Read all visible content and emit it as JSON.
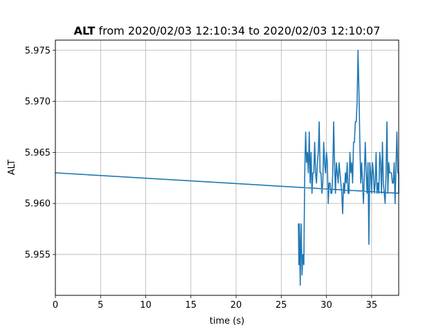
{
  "chart_data": {
    "type": "line",
    "title_bold": "ALT",
    "title_rest": " from 2020/02/03 12:10:34 to 2020/02/03 12:10:07",
    "xlabel": "time (s)",
    "ylabel": "ALT",
    "xlim": [
      0,
      38
    ],
    "ylim": [
      5.951,
      5.976
    ],
    "xticks": [
      0,
      5,
      10,
      15,
      20,
      25,
      30,
      35
    ],
    "xtick_labels": [
      "0",
      "5",
      "10",
      "15",
      "20",
      "25",
      "30",
      "35"
    ],
    "yticks": [
      5.955,
      5.96,
      5.965,
      5.97,
      5.975
    ],
    "ytick_labels": [
      "5.955",
      "5.960",
      "5.965",
      "5.970",
      "5.975"
    ],
    "grid": true,
    "line_color": "#1f77b4",
    "series": [
      {
        "x": [
          0,
          38,
          38,
          37.9,
          37.8,
          37.6,
          37.5,
          37.4,
          37.3,
          37.2,
          37.0,
          36.9,
          36.8,
          36.7,
          36.6,
          36.5,
          36.3,
          36.2,
          36.1,
          36.0,
          35.9,
          35.8,
          35.7,
          35.6,
          35.5,
          35.4,
          35.3,
          35.2,
          35.1,
          35.0,
          34.9,
          34.8,
          34.7,
          34.6,
          34.5,
          34.4,
          34.3,
          34.2,
          34.1,
          34.0,
          33.9,
          33.8,
          33.7,
          33.6,
          33.5,
          33.4,
          33.3,
          33.2,
          33.1,
          33.0,
          32.9,
          32.8,
          32.7,
          32.6,
          32.5,
          32.4,
          32.3,
          32.2,
          32.1,
          32.0,
          31.9,
          31.8,
          31.7,
          31.6,
          31.5,
          31.4,
          31.3,
          31.2,
          31.1,
          31.0,
          30.9,
          30.8,
          30.7,
          30.6,
          30.5,
          30.4,
          30.3,
          30.2,
          30.1,
          30.0,
          29.9,
          29.8,
          29.7,
          29.6,
          29.5,
          29.4,
          29.3,
          29.2,
          29.1,
          29.0,
          28.9,
          28.8,
          28.7,
          28.6,
          28.5,
          28.4,
          28.3,
          28.2,
          28.1,
          28.0,
          27.9,
          27.8,
          27.7,
          27.6,
          27.5,
          27.4,
          27.3,
          27.2,
          27.15,
          27.1,
          27.05,
          27.0,
          26.95,
          26.9
        ],
        "y": [
          5.963,
          5.961,
          5.963,
          5.963,
          5.967,
          5.96,
          5.964,
          5.962,
          5.962,
          5.963,
          5.963,
          5.964,
          5.961,
          5.968,
          5.963,
          5.96,
          5.962,
          5.966,
          5.961,
          5.964,
          5.965,
          5.961,
          5.962,
          5.961,
          5.965,
          5.962,
          5.961,
          5.963,
          5.964,
          5.961,
          5.963,
          5.964,
          5.956,
          5.964,
          5.961,
          5.963,
          5.966,
          5.963,
          5.96,
          5.962,
          5.964,
          5.962,
          5.966,
          5.971,
          5.975,
          5.97,
          5.968,
          5.968,
          5.966,
          5.966,
          5.962,
          5.964,
          5.963,
          5.965,
          5.961,
          5.961,
          5.964,
          5.962,
          5.963,
          5.961,
          5.962,
          5.959,
          5.961,
          5.962,
          5.963,
          5.964,
          5.962,
          5.963,
          5.964,
          5.961,
          5.964,
          5.968,
          5.963,
          5.961,
          5.961,
          5.962,
          5.962,
          5.96,
          5.964,
          5.965,
          5.963,
          5.964,
          5.966,
          5.962,
          5.961,
          5.963,
          5.963,
          5.968,
          5.965,
          5.964,
          5.962,
          5.963,
          5.966,
          5.963,
          5.963,
          5.961,
          5.965,
          5.962,
          5.967,
          5.963,
          5.965,
          5.964,
          5.967,
          5.963,
          5.954,
          5.955,
          5.953,
          5.958,
          5.956,
          5.952,
          5.955,
          5.958,
          5.954,
          5.958
        ]
      }
    ]
  }
}
